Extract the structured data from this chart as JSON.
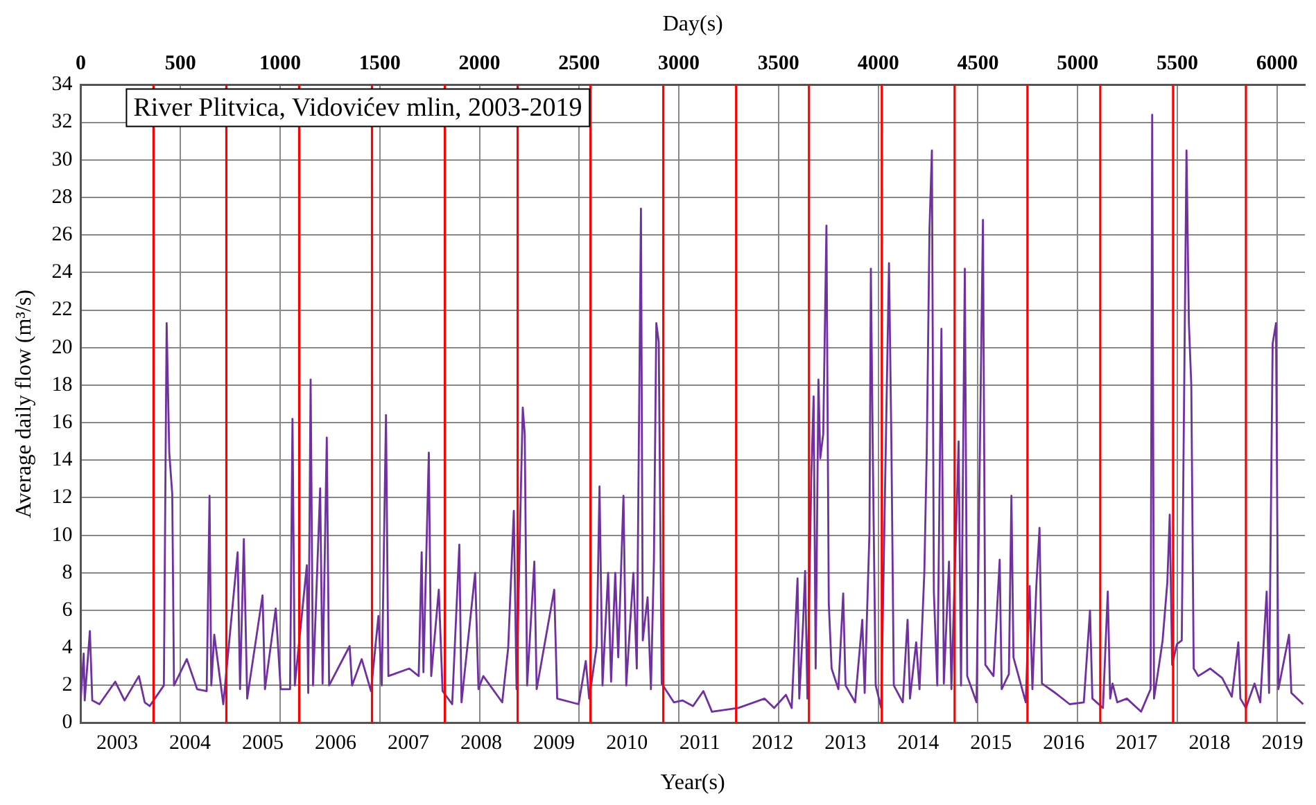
{
  "chart_data": {
    "type": "line",
    "title": "River Plitvica, Vidovićev mlin, 2003-2019",
    "xlabel": "Year(s)",
    "x2label": "Day(s)",
    "ylabel": "Average daily flow (m³/s)",
    "x": [
      2003.0,
      2003.041,
      2003.055,
      2003.126,
      2003.159,
      2003.257,
      2003.474,
      2003.602,
      2003.799,
      2003.879,
      2003.947,
      2004.142,
      2004.18,
      2004.216,
      2004.257,
      2004.281,
      2004.457,
      2004.599,
      2004.73,
      2004.769,
      2004.793,
      2004.834,
      2004.958,
      2005.155,
      2005.188,
      2005.24,
      2005.286,
      2005.497,
      2005.53,
      2005.678,
      2005.746,
      2005.875,
      2005.908,
      2005.94,
      2006.105,
      2006.124,
      2006.157,
      2006.19,
      2006.288,
      2006.321,
      2006.379,
      2006.411,
      2006.693,
      2006.726,
      2006.858,
      2006.986,
      2007.088,
      2007.134,
      2007.192,
      2007.225,
      2007.512,
      2007.641,
      2007.682,
      2007.706,
      2007.78,
      2007.813,
      2007.917,
      2007.969,
      2008.101,
      2008.199,
      2008.229,
      2008.416,
      2008.462,
      2008.528,
      2008.788,
      2008.87,
      2008.947,
      2008.985,
      2009.032,
      2009.07,
      2009.097,
      2009.13,
      2009.229,
      2009.261,
      2009.502,
      2009.543,
      2009.837,
      2009.935,
      2009.982,
      2010.086,
      2010.124,
      2010.165,
      2010.242,
      2010.283,
      2010.34,
      2010.381,
      2010.453,
      2010.491,
      2010.589,
      2010.636,
      2010.693,
      2010.718,
      2010.784,
      2010.83,
      2010.871,
      2010.904,
      2010.937,
      2010.978,
      2011.145,
      2011.263,
      2011.408,
      2011.55,
      2011.668,
      2012.03,
      2012.391,
      2012.522,
      2012.684,
      2012.763,
      2012.843,
      2012.867,
      2012.919,
      2012.947,
      2012.979,
      2013.032,
      2013.064,
      2013.092,
      2013.13,
      2013.155,
      2013.196,
      2013.24,
      2013.272,
      2013.311,
      2013.404,
      2013.47,
      2013.502,
      2013.634,
      2013.732,
      2013.765,
      2013.831,
      2013.85,
      2013.875,
      2013.916,
      2013.992,
      2014.099,
      2014.132,
      2014.165,
      2014.288,
      2014.354,
      2014.387,
      2014.472,
      2014.518,
      2014.584,
      2014.617,
      2014.655,
      2014.688,
      2014.715,
      2014.762,
      2014.819,
      2014.852,
      2014.923,
      2014.956,
      2015.055,
      2015.088,
      2015.14,
      2015.173,
      2015.301,
      2015.389,
      2015.422,
      2015.534,
      2015.619,
      2015.646,
      2015.745,
      2015.78,
      2015.808,
      2015.977,
      2016.03,
      2016.068,
      2016.122,
      2016.166,
      2016.199,
      2016.383,
      2016.58,
      2016.774,
      2016.859,
      2016.892,
      2017.037,
      2017.103,
      2017.136,
      2017.168,
      2017.234,
      2017.366,
      2017.56,
      2017.691,
      2017.713,
      2017.738,
      2017.823,
      2017.856,
      2017.921,
      2017.954,
      2017.987,
      2018.053,
      2018.119,
      2018.184,
      2018.217,
      2018.25,
      2018.283,
      2018.346,
      2018.51,
      2018.674,
      2018.806,
      2018.896,
      2018.924,
      2019.0,
      2019.118,
      2019.197,
      2019.285,
      2019.318,
      2019.367,
      2019.413,
      2019.446,
      2019.592,
      2019.624,
      2019.786
    ],
    "series": [
      {
        "color": "#7030a0",
        "values": [
          1.2,
          3.7,
          1.2,
          4.9,
          1.2,
          1.0,
          2.2,
          1.2,
          2.5,
          1.1,
          0.9,
          2.0,
          21.3,
          14.4,
          12.2,
          2.0,
          3.4,
          1.8,
          1.7,
          12.1,
          2.0,
          4.7,
          1.0,
          9.1,
          1.8,
          9.8,
          1.3,
          6.8,
          1.8,
          6.1,
          1.8,
          1.8,
          16.2,
          2.0,
          8.4,
          1.6,
          18.3,
          2.0,
          12.5,
          2.1,
          15.2,
          2.0,
          4.1,
          2.0,
          3.4,
          1.7,
          5.7,
          2.0,
          16.4,
          2.5,
          2.9,
          2.5,
          9.1,
          2.7,
          14.4,
          2.5,
          7.1,
          1.7,
          1.0,
          9.5,
          1.1,
          8.0,
          1.8,
          2.5,
          1.1,
          4.0,
          11.3,
          1.8,
          10.3,
          16.8,
          15.4,
          2.0,
          8.6,
          1.8,
          7.1,
          1.3,
          1.0,
          3.3,
          1.3,
          4.1,
          12.6,
          2.0,
          8.0,
          2.2,
          8.0,
          3.5,
          12.1,
          2.0,
          8.0,
          2.9,
          27.4,
          4.4,
          6.7,
          1.8,
          8.7,
          21.3,
          20.3,
          2.1,
          1.1,
          1.2,
          0.9,
          1.7,
          0.6,
          0.8,
          1.3,
          0.8,
          1.5,
          0.8,
          7.7,
          1.3,
          5.3,
          8.1,
          1.3,
          13.1,
          17.4,
          2.9,
          18.3,
          14.1,
          15.4,
          26.5,
          6.4,
          2.9,
          1.8,
          6.9,
          2.0,
          1.1,
          5.5,
          1.6,
          10.2,
          24.2,
          14.9,
          2.0,
          0.8,
          24.5,
          14.9,
          2.0,
          1.1,
          5.5,
          1.3,
          4.3,
          1.8,
          8.0,
          14.4,
          26.3,
          30.5,
          7.0,
          2.0,
          21.0,
          2.1,
          8.6,
          1.8,
          15.0,
          2.0,
          24.2,
          2.5,
          1.1,
          26.8,
          3.1,
          2.5,
          8.7,
          1.8,
          2.6,
          12.1,
          3.5,
          1.1,
          7.3,
          1.8,
          7.3,
          10.4,
          2.1,
          1.6,
          1.0,
          1.1,
          6.0,
          1.3,
          0.8,
          7.0,
          1.3,
          2.1,
          1.1,
          1.3,
          0.6,
          1.8,
          32.4,
          1.3,
          3.5,
          4.4,
          7.5,
          11.1,
          3.1,
          4.2,
          4.4,
          30.5,
          21.3,
          18.0,
          2.9,
          2.5,
          2.9,
          2.4,
          1.4,
          4.3,
          1.3,
          0.8,
          2.1,
          1.1,
          7.0,
          1.6,
          20.2,
          21.3,
          1.8,
          4.7,
          1.6,
          1.0
        ]
      }
    ],
    "xlim": [
      2003,
      2019.81
    ],
    "xticks": [
      {
        "value": 2003.5,
        "label": "2003"
      },
      {
        "value": 2004.5,
        "label": "2004"
      },
      {
        "value": 2005.5,
        "label": "2005"
      },
      {
        "value": 2006.5,
        "label": "2006"
      },
      {
        "value": 2007.5,
        "label": "2007"
      },
      {
        "value": 2008.5,
        "label": "2008"
      },
      {
        "value": 2009.5,
        "label": "2009"
      },
      {
        "value": 2010.5,
        "label": "2010"
      },
      {
        "value": 2011.5,
        "label": "2011"
      },
      {
        "value": 2012.5,
        "label": "2012"
      },
      {
        "value": 2013.5,
        "label": "2013"
      },
      {
        "value": 2014.5,
        "label": "2014"
      },
      {
        "value": 2015.5,
        "label": "2015"
      },
      {
        "value": 2016.5,
        "label": "2016"
      },
      {
        "value": 2017.5,
        "label": "2017"
      },
      {
        "value": 2018.5,
        "label": "2018"
      },
      {
        "value": 2019.5,
        "label": "2019"
      }
    ],
    "x2lim": [
      0,
      6140
    ],
    "x2ticks": [
      0,
      500,
      1000,
      1500,
      2000,
      2500,
      3000,
      3500,
      4000,
      4500,
      5000,
      5500,
      6000
    ],
    "ylim": [
      0,
      34
    ],
    "yticks": [
      0,
      2,
      4,
      6,
      8,
      10,
      12,
      14,
      16,
      18,
      20,
      22,
      24,
      26,
      28,
      30,
      32,
      34
    ],
    "grid": true,
    "ref_lines": [
      {
        "axis": "x",
        "value": 2004,
        "color": "#ff0000"
      },
      {
        "axis": "x",
        "value": 2005,
        "color": "#ff0000"
      },
      {
        "axis": "x",
        "value": 2006,
        "color": "#ff0000"
      },
      {
        "axis": "x",
        "value": 2007,
        "color": "#ff0000"
      },
      {
        "axis": "x",
        "value": 2008,
        "color": "#ff0000"
      },
      {
        "axis": "x",
        "value": 2009,
        "color": "#ff0000"
      },
      {
        "axis": "x",
        "value": 2010,
        "color": "#ff0000"
      },
      {
        "axis": "x",
        "value": 2011,
        "color": "#ff0000"
      },
      {
        "axis": "x",
        "value": 2012,
        "color": "#ff0000"
      },
      {
        "axis": "x",
        "value": 2013,
        "color": "#ff0000"
      },
      {
        "axis": "x",
        "value": 2014,
        "color": "#ff0000"
      },
      {
        "axis": "x",
        "value": 2015,
        "color": "#ff0000"
      },
      {
        "axis": "x",
        "value": 2016,
        "color": "#ff0000"
      },
      {
        "axis": "x",
        "value": 2017,
        "color": "#ff0000"
      },
      {
        "axis": "x",
        "value": 2018,
        "color": "#ff0000"
      },
      {
        "axis": "x",
        "value": 2019,
        "color": "#ff0000"
      }
    ]
  }
}
